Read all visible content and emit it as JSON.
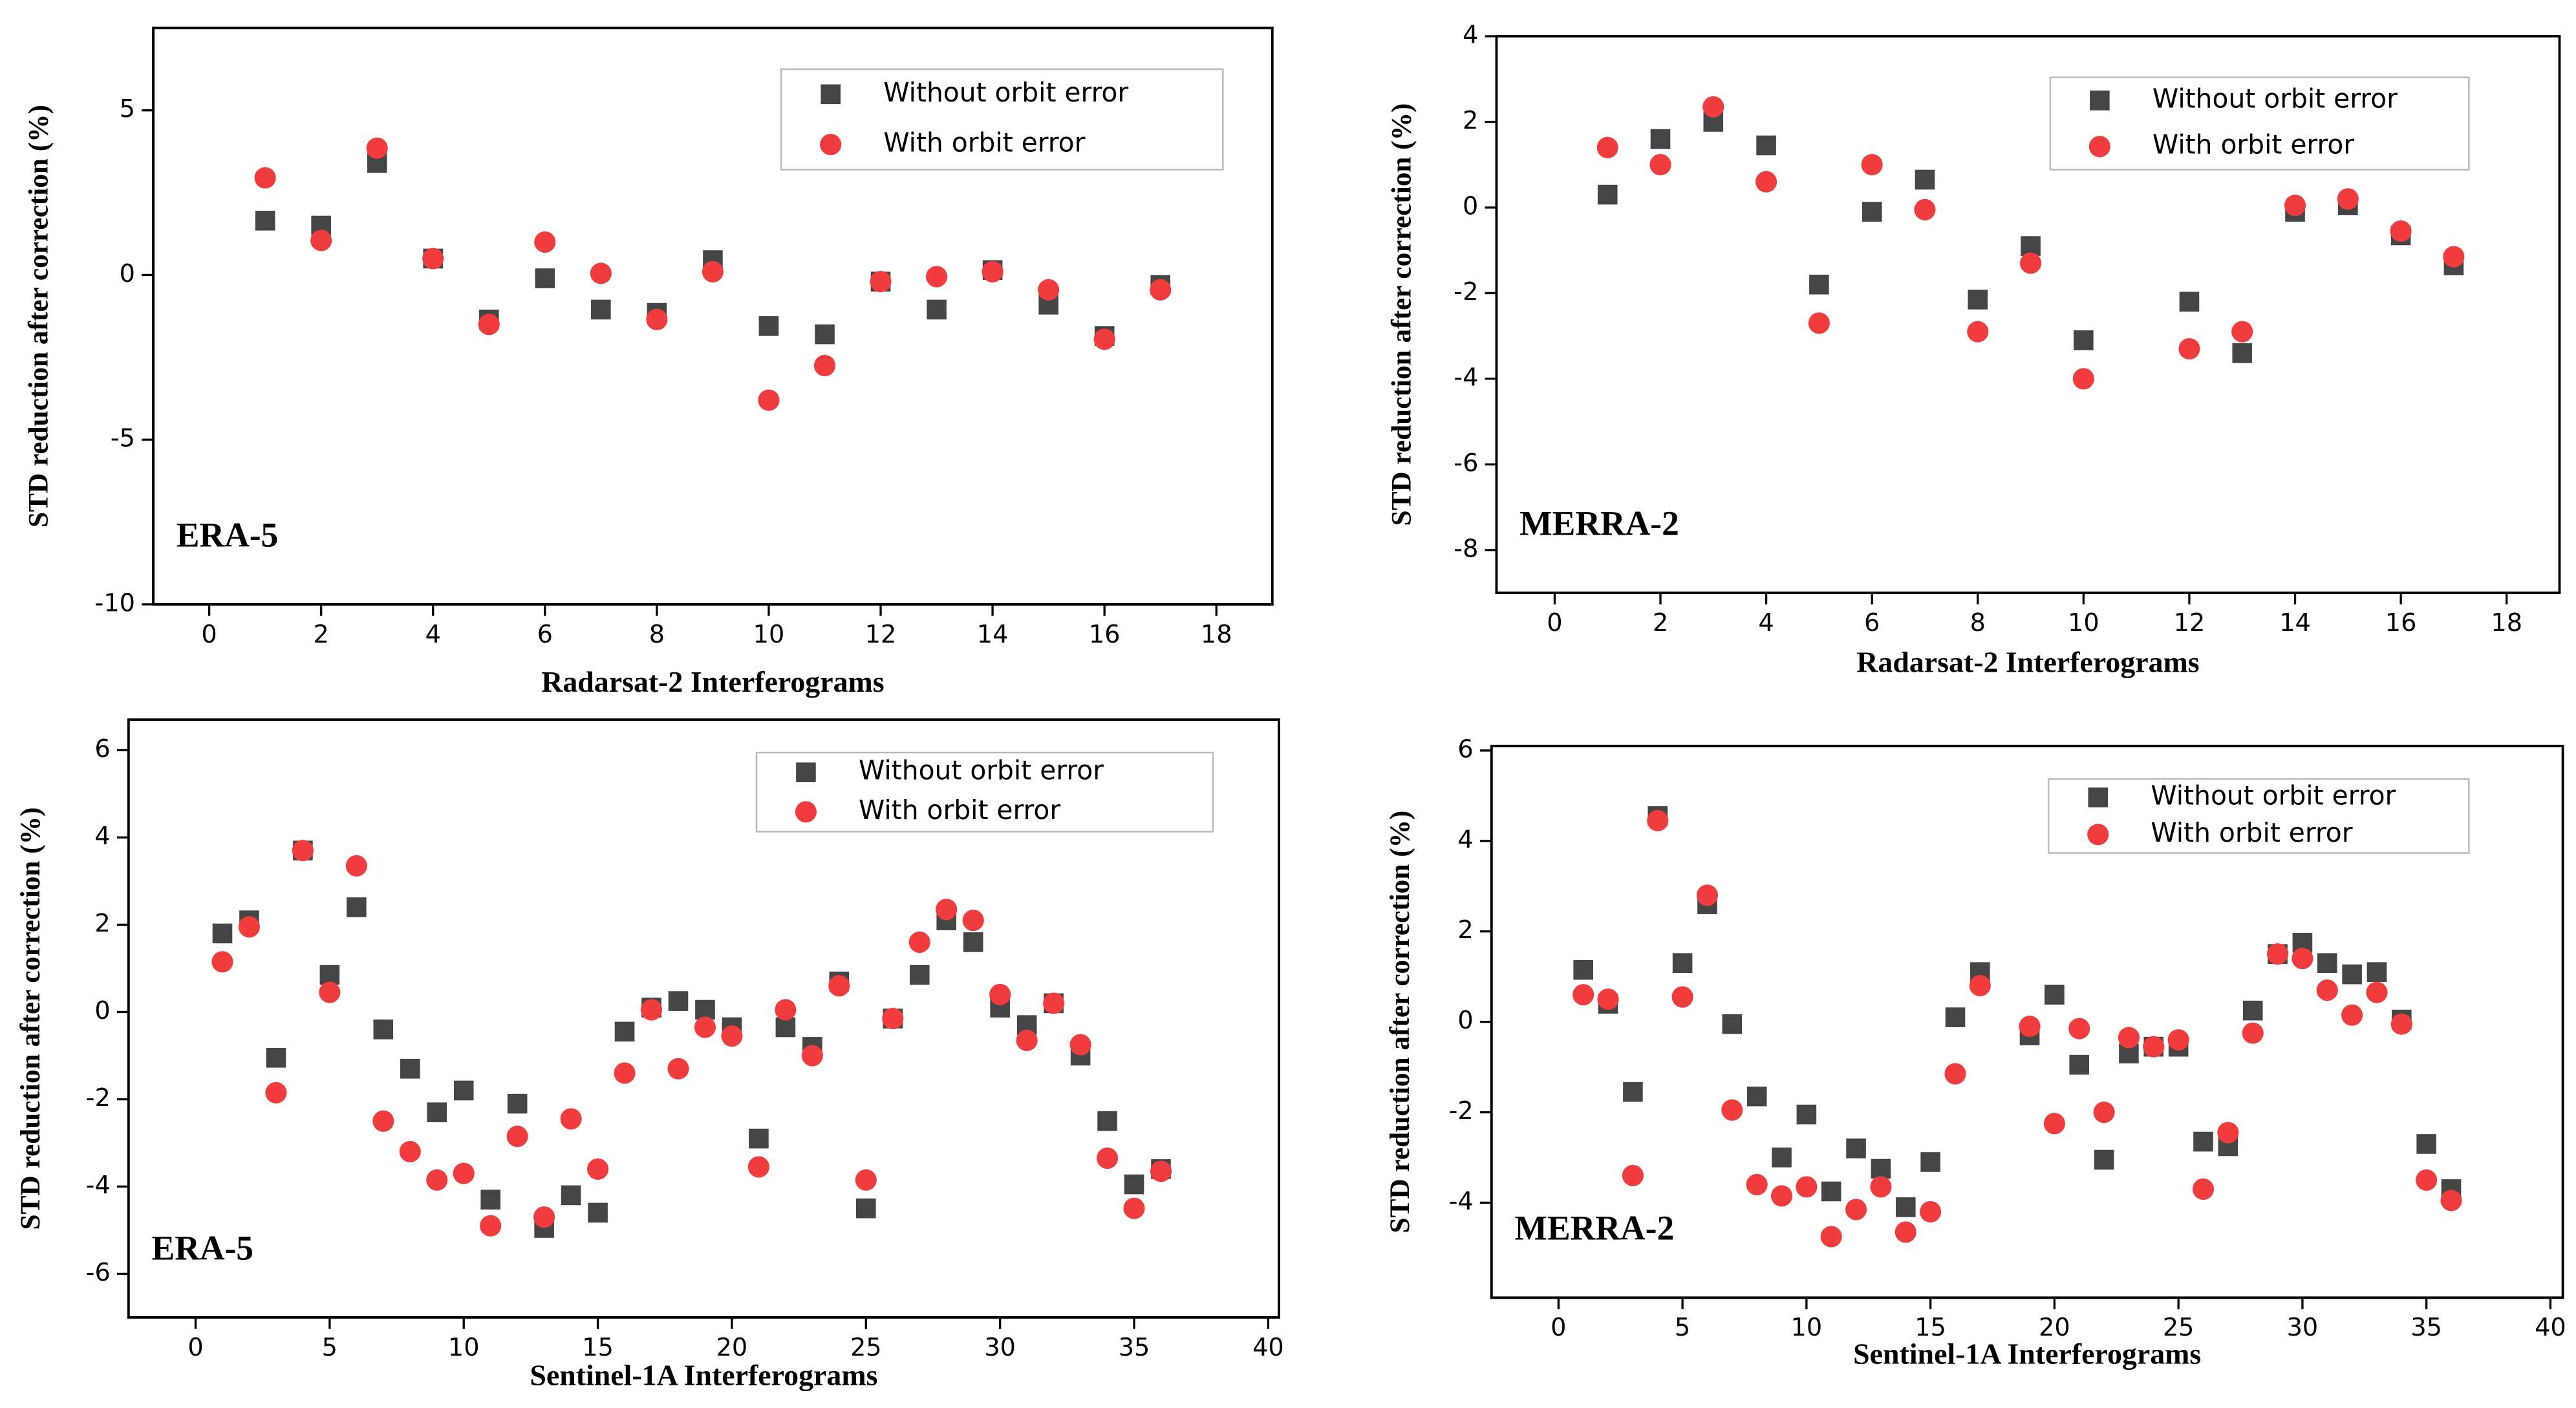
{
  "chart_data": [
    {
      "type": "scatter",
      "annotation": "ERA-5",
      "xlabel": "Radarsat-2 Interferograms",
      "ylabel": "STD reduction after correction (%)",
      "xlim": [
        -1,
        19
      ],
      "ylim": [
        -10,
        7.5
      ],
      "xticks": [
        0,
        2,
        4,
        6,
        8,
        10,
        12,
        14,
        16,
        18
      ],
      "yticks": [
        -10,
        -5,
        0,
        5
      ],
      "legend": "upper right",
      "x": [
        1,
        2,
        3,
        4,
        5,
        6,
        7,
        8,
        9,
        10,
        11,
        12,
        13,
        14,
        15,
        16,
        17
      ],
      "series": [
        {
          "name": "Without orbit error",
          "color": "#454545",
          "marker": "square",
          "values": [
            1.65,
            1.5,
            3.4,
            0.5,
            -1.35,
            -0.1,
            -1.05,
            -1.15,
            0.45,
            -1.55,
            -1.8,
            -0.2,
            -1.05,
            0.15,
            -0.9,
            -1.85,
            -0.3
          ]
        },
        {
          "name": "With orbit error",
          "color": "#f03c3c",
          "marker": "circle",
          "values": [
            2.95,
            1.05,
            3.85,
            0.5,
            -1.5,
            1.0,
            0.05,
            -1.35,
            0.1,
            -3.8,
            -2.75,
            -0.2,
            -0.05,
            0.1,
            -0.45,
            -1.95,
            -0.45
          ]
        }
      ]
    },
    {
      "type": "scatter",
      "annotation": "MERRA-2",
      "xlabel": "Radarsat-2 Interferograms",
      "ylabel": "STD reduction after correction (%)",
      "xlim": [
        -1.1,
        19
      ],
      "ylim": [
        -9,
        4
      ],
      "xticks": [
        0,
        2,
        4,
        6,
        8,
        10,
        12,
        14,
        16,
        18
      ],
      "yticks": [
        -8,
        -6,
        -4,
        -2,
        0,
        2,
        4
      ],
      "legend": "upper right",
      "x": [
        1,
        2,
        3,
        4,
        5,
        6,
        7,
        8,
        9,
        10,
        12,
        13,
        14,
        15,
        16,
        17
      ],
      "series": [
        {
          "name": "Without orbit error",
          "color": "#454545",
          "marker": "square",
          "values": [
            0.3,
            1.6,
            2.0,
            1.45,
            -1.8,
            -0.1,
            0.65,
            -2.15,
            -0.9,
            -3.1,
            -2.2,
            -3.4,
            -0.1,
            0.05,
            -0.65,
            -1.35
          ]
        },
        {
          "name": "With orbit error",
          "color": "#f03c3c",
          "marker": "circle",
          "values": [
            1.4,
            1.0,
            2.35,
            0.6,
            -2.7,
            1.0,
            -0.05,
            -2.9,
            -1.3,
            -4.0,
            -3.3,
            -2.9,
            0.05,
            0.2,
            -0.55,
            -1.15
          ]
        }
      ]
    },
    {
      "type": "scatter",
      "annotation": "ERA-5",
      "xlabel": "Sentinel-1A Interferograms",
      "ylabel": "STD reduction after correction (%)",
      "xlim": [
        -2.5,
        40.4
      ],
      "ylim": [
        -7,
        6.7
      ],
      "xticks": [
        0,
        5,
        10,
        15,
        20,
        25,
        30,
        35,
        40
      ],
      "yticks": [
        -6,
        -4,
        -2,
        0,
        2,
        4,
        6
      ],
      "legend": "upper right",
      "x": [
        1,
        2,
        3,
        4,
        5,
        6,
        7,
        8,
        9,
        10,
        11,
        12,
        13,
        14,
        15,
        16,
        17,
        18,
        19,
        20,
        21,
        22,
        23,
        24,
        25,
        26,
        27,
        28,
        29,
        30,
        31,
        32,
        33,
        34,
        35,
        36
      ],
      "series": [
        {
          "name": "Without orbit error",
          "color": "#454545",
          "marker": "square",
          "values": [
            1.8,
            2.1,
            -1.05,
            3.7,
            0.85,
            2.4,
            -0.4,
            -1.3,
            -2.3,
            -1.8,
            -4.3,
            -2.1,
            -4.95,
            -4.2,
            -4.6,
            -0.45,
            0.1,
            0.25,
            0.05,
            -0.35,
            -2.9,
            -0.35,
            -0.8,
            0.7,
            -4.5,
            -0.15,
            0.85,
            2.1,
            1.6,
            0.1,
            -0.3,
            0.2,
            -1.0,
            -2.5,
            -3.95,
            -3.6
          ]
        },
        {
          "name": "With orbit error",
          "color": "#f03c3c",
          "marker": "circle",
          "values": [
            1.15,
            1.95,
            -1.85,
            3.7,
            0.45,
            3.35,
            -2.5,
            -3.2,
            -3.85,
            -3.7,
            -4.9,
            -2.85,
            -4.7,
            -2.45,
            -3.6,
            -1.4,
            0.05,
            -1.3,
            -0.35,
            -0.55,
            -3.55,
            0.05,
            -1.0,
            0.6,
            -3.85,
            -0.15,
            1.6,
            2.35,
            2.1,
            0.4,
            -0.65,
            0.2,
            -0.75,
            -3.35,
            -4.5,
            -3.65
          ]
        }
      ]
    },
    {
      "type": "scatter",
      "annotation": "MERRA-2",
      "xlabel": "Sentinel-1A Interferograms",
      "ylabel": "STD reduction after correction (%)",
      "xlim": [
        -2.7,
        40.5
      ],
      "ylim": [
        -6.1,
        6.1
      ],
      "xticks": [
        0,
        5,
        10,
        15,
        20,
        25,
        30,
        35,
        40
      ],
      "yticks": [
        -4,
        -2,
        0,
        2,
        4,
        6
      ],
      "legend": "upper right",
      "x": [
        1,
        2,
        3,
        4,
        5,
        6,
        7,
        8,
        9,
        10,
        11,
        12,
        13,
        14,
        15,
        16,
        17,
        19,
        20,
        21,
        22,
        23,
        24,
        25,
        26,
        27,
        28,
        29,
        30,
        31,
        32,
        33,
        34,
        35,
        36
      ],
      "series": [
        {
          "name": "Without orbit error",
          "color": "#454545",
          "marker": "square",
          "values": [
            1.15,
            0.4,
            -1.55,
            4.55,
            1.3,
            2.6,
            -0.05,
            -1.65,
            -3.0,
            -2.05,
            -3.75,
            -2.8,
            -3.25,
            -4.1,
            -3.1,
            0.1,
            1.1,
            -0.3,
            0.6,
            -0.95,
            -3.05,
            -0.7,
            -0.55,
            -0.55,
            -2.65,
            -2.75,
            0.25,
            1.5,
            1.75,
            1.3,
            1.05,
            1.1,
            0.05,
            -2.7,
            -3.7
          ]
        },
        {
          "name": "With orbit error",
          "color": "#f03c3c",
          "marker": "circle",
          "values": [
            0.6,
            0.5,
            -3.4,
            4.45,
            0.55,
            2.8,
            -1.95,
            -3.6,
            -3.85,
            -3.65,
            -4.75,
            -4.15,
            -3.65,
            -4.65,
            -4.2,
            -1.15,
            0.8,
            -0.1,
            -2.25,
            -0.15,
            -2.0,
            -0.35,
            -0.55,
            -0.4,
            -3.7,
            -2.45,
            -0.25,
            1.5,
            1.4,
            0.7,
            0.15,
            0.65,
            -0.05,
            -3.5,
            -3.95
          ]
        }
      ]
    }
  ]
}
